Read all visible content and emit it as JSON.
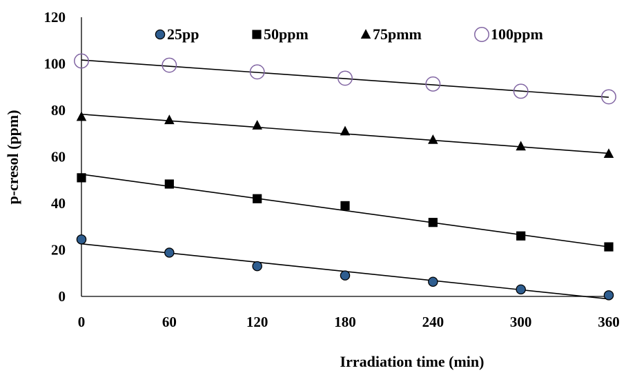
{
  "chart_data": {
    "type": "scatter",
    "xlabel": "Irradiation time (min)",
    "ylabel": "p-cresol (ppm)",
    "xlim": [
      0,
      360
    ],
    "ylim": [
      0,
      120
    ],
    "xticks": [
      "0",
      "60",
      "120",
      "180",
      "240",
      "300",
      "360"
    ],
    "yticks": [
      "0",
      "20",
      "40",
      "60",
      "80",
      "100",
      "120"
    ],
    "grid": false,
    "legend_position": "top",
    "x": [
      0,
      60,
      120,
      180,
      240,
      300,
      360
    ],
    "series": [
      {
        "name": "25pp",
        "marker": "circle-filled",
        "color": "#1f3a5f",
        "values": [
          24.5,
          18.8,
          13.0,
          9.0,
          6.3,
          3.0,
          0.5
        ],
        "trendline": [
          22.6,
          -1.1
        ]
      },
      {
        "name": "50ppm",
        "marker": "square",
        "color": "#000000",
        "values": [
          51.0,
          48.3,
          42.0,
          39.0,
          31.8,
          26.0,
          21.3
        ],
        "trendline": [
          52.5,
          21.3
        ]
      },
      {
        "name": "75pmm",
        "marker": "triangle",
        "color": "#000000",
        "values": [
          77.2,
          75.8,
          73.5,
          71.0,
          67.3,
          64.5,
          61.3
        ],
        "trendline": [
          78.3,
          61.5
        ]
      },
      {
        "name": "100ppm",
        "marker": "circle-open",
        "color": "#8064a2",
        "values": [
          101.2,
          99.4,
          96.5,
          93.8,
          91.3,
          88.2,
          85.8
        ],
        "trendline": [
          101.6,
          85.6
        ]
      }
    ]
  }
}
